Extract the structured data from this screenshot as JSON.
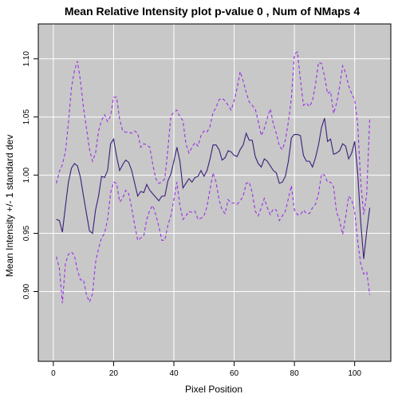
{
  "chart_data": {
    "type": "line",
    "title": "Mean Relative Intensity plot p-value 0 , Num of NMaps 4",
    "xlabel": "Pixel Position",
    "ylabel": "Mean Intensity +/- 1 standard dev",
    "xlim": [
      -5,
      112
    ],
    "ylim": [
      0.84,
      1.13
    ],
    "x_ticks": [
      0,
      20,
      40,
      60,
      80,
      100
    ],
    "x_tick_labels": [
      "0",
      "20",
      "40",
      "60",
      "80",
      "100"
    ],
    "y_ticks": [
      0.9,
      0.95,
      1.0,
      1.05,
      1.1
    ],
    "y_tick_labels": [
      "0.90",
      "0.95",
      "1.00",
      "1.05",
      "1.10"
    ],
    "grid": true,
    "background": "#c8c8c8",
    "x": [
      1,
      2,
      3,
      4,
      5,
      6,
      7,
      8,
      9,
      10,
      11,
      12,
      13,
      14,
      15,
      16,
      17,
      18,
      19,
      20,
      21,
      22,
      23,
      24,
      25,
      26,
      27,
      28,
      29,
      30,
      31,
      32,
      33,
      34,
      35,
      36,
      37,
      38,
      39,
      40,
      41,
      42,
      43,
      44,
      45,
      46,
      47,
      48,
      49,
      50,
      51,
      52,
      53,
      54,
      55,
      56,
      57,
      58,
      59,
      60,
      61,
      62,
      63,
      64,
      65,
      66,
      67,
      68,
      69,
      70,
      71,
      72,
      73,
      74,
      75,
      76,
      77,
      78,
      79,
      80,
      81,
      82,
      83,
      84,
      85,
      86,
      87,
      88,
      89,
      90,
      91,
      92,
      93,
      94,
      95,
      96,
      97,
      98,
      99,
      100,
      101,
      102,
      103,
      104,
      105
    ],
    "series": [
      {
        "role": "mean",
        "color": "#3a1f7a",
        "dash": "solid",
        "values": [
          0.962,
          0.961,
          0.951,
          0.973,
          0.994,
          1.006,
          1.01,
          1.008,
          0.998,
          0.982,
          0.967,
          0.952,
          0.95,
          0.97,
          0.982,
          0.999,
          0.998,
          1.004,
          1.027,
          1.031,
          1.016,
          1.004,
          1.009,
          1.013,
          1.011,
          1.004,
          0.993,
          0.982,
          0.986,
          0.985,
          0.992,
          0.987,
          0.984,
          0.981,
          0.978,
          0.982,
          0.982,
          0.995,
          1.001,
          1.012,
          1.024,
          1.012,
          0.989,
          0.993,
          0.997,
          0.994,
          0.998,
          0.999,
          1.004,
          0.999,
          1.004,
          1.014,
          1.026,
          1.026,
          1.022,
          1.013,
          1.015,
          1.021,
          1.02,
          1.017,
          1.016,
          1.022,
          1.026,
          1.036,
          1.03,
          1.03,
          1.016,
          1.01,
          1.007,
          1.014,
          1.012,
          1.008,
          1.004,
          1.002,
          0.993,
          0.994,
          0.999,
          1.012,
          1.032,
          1.035,
          1.035,
          1.034,
          1.017,
          1.012,
          1.012,
          1.007,
          1.015,
          1.026,
          1.041,
          1.049,
          1.029,
          1.031,
          1.018,
          1.019,
          1.021,
          1.027,
          1.025,
          1.014,
          1.019,
          1.029,
          1.002,
          0.96,
          0.928,
          0.952,
          0.972
        ]
      },
      {
        "role": "mean-plus-sd",
        "color": "#9a30e8",
        "dash": "dashed",
        "values": [
          0.993,
          1.003,
          1.009,
          1.02,
          1.045,
          1.075,
          1.09,
          1.098,
          1.081,
          1.058,
          1.04,
          1.022,
          1.012,
          1.019,
          1.038,
          1.047,
          1.052,
          1.046,
          1.051,
          1.067,
          1.067,
          1.048,
          1.038,
          1.037,
          1.037,
          1.036,
          1.038,
          1.036,
          1.024,
          1.027,
          1.026,
          1.024,
          1.009,
          0.997,
          0.993,
          0.994,
          0.997,
          1.022,
          1.051,
          1.054,
          1.056,
          1.05,
          1.047,
          1.027,
          1.019,
          1.024,
          1.028,
          1.025,
          1.034,
          1.038,
          1.037,
          1.042,
          1.054,
          1.058,
          1.065,
          1.066,
          1.064,
          1.06,
          1.056,
          1.064,
          1.075,
          1.089,
          1.081,
          1.071,
          1.063,
          1.06,
          1.057,
          1.046,
          1.034,
          1.04,
          1.049,
          1.057,
          1.044,
          1.036,
          1.025,
          1.022,
          1.03,
          1.046,
          1.066,
          1.104,
          1.106,
          1.082,
          1.06,
          1.062,
          1.059,
          1.064,
          1.078,
          1.097,
          1.096,
          1.085,
          1.07,
          1.072,
          1.053,
          1.062,
          1.076,
          1.094,
          1.088,
          1.077,
          1.07,
          1.065,
          1.044,
          0.994,
          0.966,
          0.984,
          1.049
        ]
      },
      {
        "role": "mean-minus-sd",
        "color": "#9a30e8",
        "dash": "dashed",
        "values": [
          0.93,
          0.92,
          0.89,
          0.924,
          0.932,
          0.934,
          0.931,
          0.918,
          0.91,
          0.91,
          0.897,
          0.891,
          0.898,
          0.925,
          0.937,
          0.946,
          0.95,
          0.962,
          0.985,
          0.994,
          0.993,
          0.977,
          0.98,
          0.987,
          0.984,
          0.972,
          0.957,
          0.944,
          0.946,
          0.948,
          0.962,
          0.97,
          0.974,
          0.966,
          0.956,
          0.944,
          0.944,
          0.957,
          0.965,
          0.979,
          0.994,
          0.974,
          0.962,
          0.965,
          0.969,
          0.968,
          0.969,
          0.962,
          0.963,
          0.965,
          0.973,
          0.988,
          1.002,
          0.994,
          0.979,
          0.97,
          0.967,
          0.979,
          0.976,
          0.976,
          0.975,
          0.978,
          0.982,
          0.993,
          0.994,
          0.985,
          0.969,
          0.965,
          0.972,
          0.98,
          0.972,
          0.966,
          0.971,
          0.97,
          0.961,
          0.965,
          0.969,
          0.98,
          0.991,
          0.97,
          0.966,
          0.966,
          0.97,
          0.967,
          0.967,
          0.972,
          0.975,
          0.984,
          1.001,
          1.0,
          0.994,
          0.994,
          0.99,
          0.968,
          0.961,
          0.949,
          0.964,
          0.982,
          0.979,
          0.969,
          0.943,
          0.924,
          0.915,
          0.917,
          0.897
        ]
      }
    ]
  }
}
